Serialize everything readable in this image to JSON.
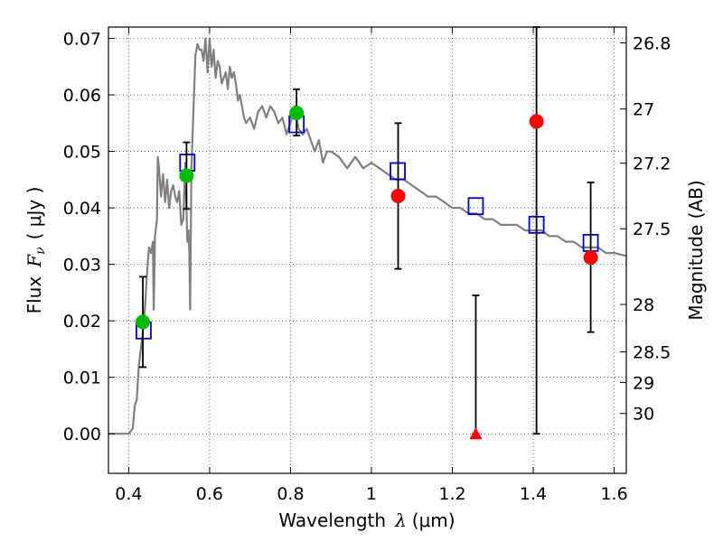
{
  "chart_data": {
    "type": "scatter",
    "xlabel_prefix": "Wavelength",
    "xlabel_symbol": "λ",
    "xlabel_unit": "(μm)",
    "ylabel_prefix": "Flux",
    "ylabel_symbol": "F",
    "ylabel_subscript": "ν",
    "ylabel_unit": "( μJy )",
    "y2label": "Magnitude (AB)",
    "xlim": [
      0.35,
      1.63
    ],
    "ylim": [
      -0.007,
      0.072
    ],
    "grid": true,
    "x_ticks": [
      {
        "value": 0.4,
        "label": "0.4"
      },
      {
        "value": 0.6,
        "label": "0.6"
      },
      {
        "value": 0.8,
        "label": "0.8"
      },
      {
        "value": 1.0,
        "label": "1"
      },
      {
        "value": 1.2,
        "label": "1.2"
      },
      {
        "value": 1.4,
        "label": "1.4"
      },
      {
        "value": 1.6,
        "label": "1.6"
      }
    ],
    "y_ticks": [
      {
        "value": 0.0,
        "label": "0.00"
      },
      {
        "value": 0.01,
        "label": "0.01"
      },
      {
        "value": 0.02,
        "label": "0.02"
      },
      {
        "value": 0.03,
        "label": "0.03"
      },
      {
        "value": 0.04,
        "label": "0.04"
      },
      {
        "value": 0.05,
        "label": "0.05"
      },
      {
        "value": 0.06,
        "label": "0.06"
      },
      {
        "value": 0.07,
        "label": "0.07"
      }
    ],
    "mag_ticks": [
      {
        "label": "26.8",
        "flux": 0.0692
      },
      {
        "label": "27",
        "flux": 0.0575
      },
      {
        "label": "27.2",
        "flux": 0.0479
      },
      {
        "label": "27.5",
        "flux": 0.0363
      },
      {
        "label": "28",
        "flux": 0.0229
      },
      {
        "label": "28.5",
        "flux": 0.0145
      },
      {
        "label": "29",
        "flux": 0.0091
      },
      {
        "label": "30",
        "flux": 0.0036
      }
    ],
    "colors": {
      "model": "#808080",
      "model_points": "#0000cc",
      "detections": "#00bb00",
      "nondetections": "#ff0000",
      "errorbars": "#000000"
    },
    "series": [
      {
        "marker": "line",
        "x": [
          0.35,
          0.395,
          0.4,
          0.405,
          0.41,
          0.415,
          0.42,
          0.425,
          0.43,
          0.435,
          0.44,
          0.445,
          0.45,
          0.455,
          0.46,
          0.462,
          0.465,
          0.47,
          0.472,
          0.475,
          0.48,
          0.485,
          0.49,
          0.495,
          0.5,
          0.505,
          0.51,
          0.515,
          0.52,
          0.525,
          0.53,
          0.535,
          0.54,
          0.545,
          0.548,
          0.55,
          0.552,
          0.555,
          0.56,
          0.565,
          0.57,
          0.575,
          0.58,
          0.585,
          0.59,
          0.595,
          0.6,
          0.605,
          0.61,
          0.615,
          0.62,
          0.625,
          0.63,
          0.64,
          0.645,
          0.65,
          0.655,
          0.66,
          0.665,
          0.67,
          0.675,
          0.68,
          0.685,
          0.69,
          0.7,
          0.71,
          0.72,
          0.73,
          0.74,
          0.75,
          0.76,
          0.77,
          0.78,
          0.79,
          0.8,
          0.81,
          0.82,
          0.83,
          0.84,
          0.85,
          0.86,
          0.87,
          0.88,
          0.89,
          0.9,
          0.92,
          0.94,
          0.96,
          0.98,
          1.0,
          1.02,
          1.04,
          1.06,
          1.08,
          1.1,
          1.12,
          1.14,
          1.16,
          1.18,
          1.2,
          1.22,
          1.24,
          1.26,
          1.28,
          1.3,
          1.32,
          1.34,
          1.36,
          1.38,
          1.4,
          1.42,
          1.44,
          1.46,
          1.48,
          1.5,
          1.52,
          1.54,
          1.56,
          1.58,
          1.6,
          1.63
        ],
        "y": [
          0.0,
          0.0,
          0.0,
          0.0005,
          0.001,
          0.005,
          0.006,
          0.012,
          0.015,
          0.018,
          0.022,
          0.028,
          0.033,
          0.032,
          0.034,
          0.022,
          0.035,
          0.038,
          0.049,
          0.047,
          0.042,
          0.046,
          0.041,
          0.045,
          0.04,
          0.043,
          0.044,
          0.042,
          0.041,
          0.043,
          0.037,
          0.038,
          0.048,
          0.034,
          0.036,
          0.032,
          0.022,
          0.047,
          0.057,
          0.067,
          0.069,
          0.068,
          0.068,
          0.066,
          0.07,
          0.064,
          0.07,
          0.065,
          0.068,
          0.063,
          0.066,
          0.065,
          0.062,
          0.064,
          0.061,
          0.065,
          0.063,
          0.064,
          0.062,
          0.059,
          0.06,
          0.058,
          0.056,
          0.055,
          0.056,
          0.054,
          0.057,
          0.058,
          0.056,
          0.058,
          0.057,
          0.055,
          0.056,
          0.053,
          0.055,
          0.058,
          0.054,
          0.053,
          0.054,
          0.052,
          0.05,
          0.052,
          0.048,
          0.05,
          0.05,
          0.049,
          0.047,
          0.049,
          0.047,
          0.048,
          0.047,
          0.046,
          0.045,
          0.045,
          0.044,
          0.043,
          0.042,
          0.042,
          0.041,
          0.04,
          0.04,
          0.039,
          0.039,
          0.038,
          0.038,
          0.037,
          0.037,
          0.037,
          0.036,
          0.036,
          0.036,
          0.035,
          0.035,
          0.034,
          0.034,
          0.033,
          0.033,
          0.033,
          0.032,
          0.032,
          0.0315
        ]
      },
      {
        "marker": "square",
        "x": [
          0.437,
          0.545,
          0.815,
          1.065,
          1.258,
          1.408,
          1.542
        ],
        "y": [
          0.0183,
          0.048,
          0.0548,
          0.0465,
          0.0403,
          0.037,
          0.0338
        ]
      },
      {
        "marker": "circle",
        "x": [
          0.435,
          0.543,
          0.815
        ],
        "y": [
          0.0198,
          0.0457,
          0.0568
        ],
        "yerr_low": [
          0.0118,
          0.0398,
          0.0528
        ],
        "yerr_high": [
          0.0278,
          0.0516,
          0.061
        ]
      },
      {
        "marker": "circle",
        "x": [
          1.066,
          1.408,
          1.542
        ],
        "y": [
          0.0421,
          0.0553,
          0.0312
        ],
        "yerr_low": [
          0.0292,
          0.0,
          0.018
        ],
        "yerr_high": [
          0.055,
          0.072,
          0.0445
        ]
      },
      {
        "marker": "triangle",
        "x": [
          1.258
        ],
        "y": [
          0.0
        ],
        "yerr_low": [
          0.0
        ],
        "yerr_high": [
          0.0245
        ]
      }
    ]
  }
}
